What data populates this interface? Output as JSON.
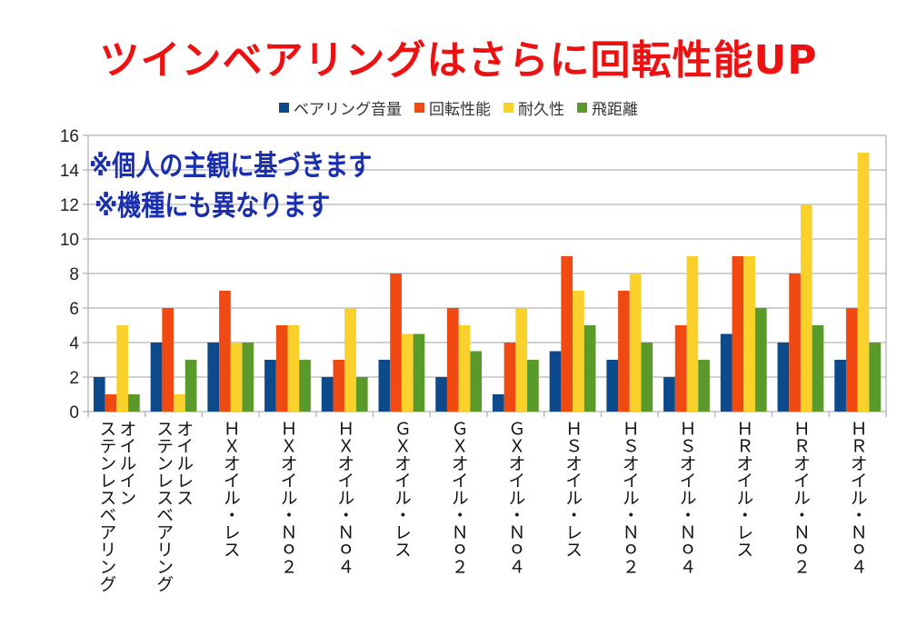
{
  "chart_data": {
    "type": "bar",
    "title": "ツインベアリングはさらに回転性能UP",
    "annotations": [
      "※個人の主観に基づきます",
      "※機種にも異なります"
    ],
    "categories": [
      "オイルイン\nステンレスベアリング",
      "オイルレス\nステンレスベアリング",
      "ＨＸオイル・レス",
      "ＨＸオイル・Ｎｏ２",
      "ＨＸオイル・Ｎｏ４",
      "ＧＸオイル・レス",
      "ＧＸオイル・Ｎｏ２",
      "ＧＸオイル・Ｎｏ４",
      "ＨＳオイル・レス",
      "ＨＳオイル・Ｎｏ２",
      "ＨＳオイル・Ｎｏ４",
      "ＨＲオイル・レス",
      "ＨＲオイル・Ｎｏ２",
      "ＨＲオイル・Ｎｏ４"
    ],
    "series": [
      {
        "name": "ベアリング音量",
        "color": "#0d4a8c",
        "values": [
          2,
          4,
          4,
          3,
          2,
          3,
          2,
          1,
          3.5,
          3,
          2,
          4.5,
          4,
          3
        ]
      },
      {
        "name": "回転性能",
        "color": "#f04a12",
        "values": [
          1,
          6,
          7,
          5,
          3,
          8,
          6,
          4,
          9,
          7,
          5,
          9,
          8,
          6
        ]
      },
      {
        "name": "耐久性",
        "color": "#f9d12a",
        "values": [
          5,
          1,
          4,
          5,
          6,
          4.5,
          5,
          6,
          7,
          8,
          9,
          9,
          12,
          15
        ]
      },
      {
        "name": "飛距離",
        "color": "#5a9a2a",
        "values": [
          1,
          3,
          4,
          3,
          2,
          4.5,
          3.5,
          3,
          5,
          4,
          3,
          6,
          5,
          4
        ]
      }
    ],
    "ylim": [
      0,
      16
    ],
    "yticks": [
      "0",
      "2",
      "4",
      "6",
      "8",
      "10",
      "12",
      "14",
      "16"
    ],
    "grid": true,
    "legend": "top"
  }
}
